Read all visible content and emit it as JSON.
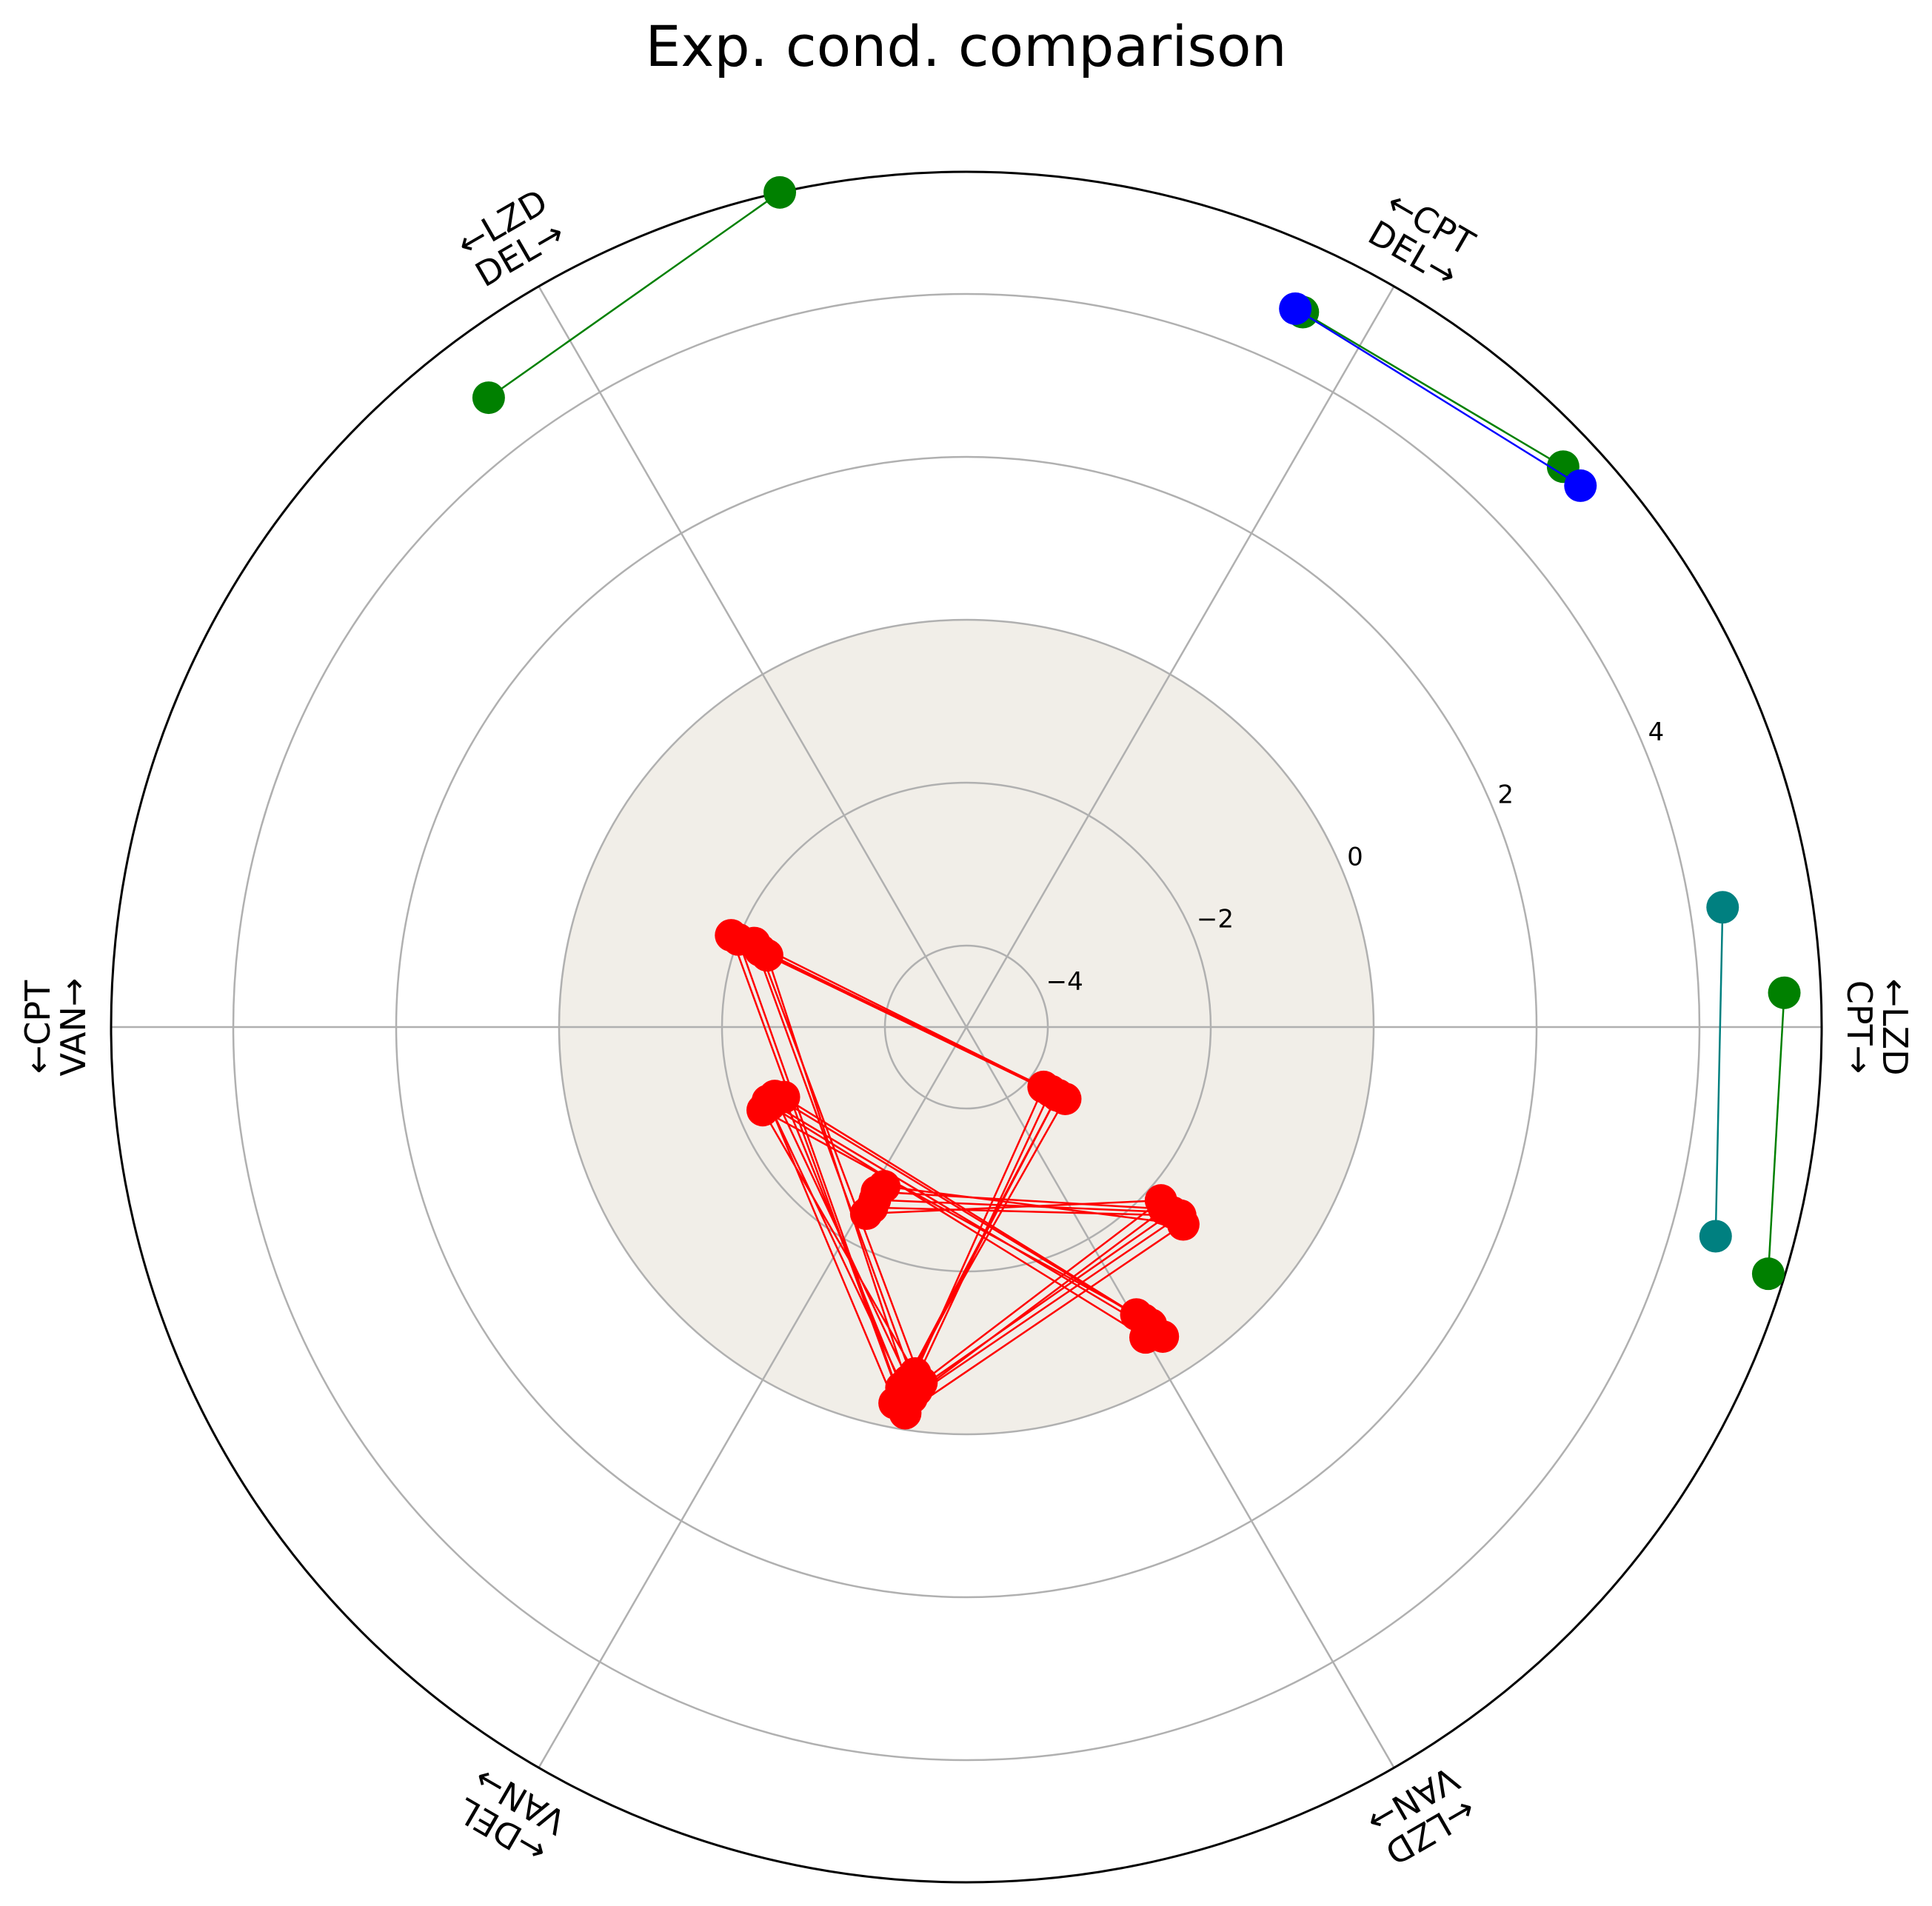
{
  "chart_data": {
    "type": "scatter",
    "subtype": "polar",
    "title": "Exp. cond. comparison",
    "r_ticks": [
      -4,
      -2,
      0,
      2,
      4
    ],
    "r_range": [
      -5,
      5.5
    ],
    "shaded_region_r_max": 0,
    "grid": true,
    "axis_labels": [
      {
        "angle_deg": 0,
        "outer": "←LZD",
        "inner": "CPT→"
      },
      {
        "angle_deg": 60,
        "outer": "←CPT",
        "inner": "DEL→"
      },
      {
        "angle_deg": 120,
        "outer": "←LZD",
        "inner": "DEL→"
      },
      {
        "angle_deg": 180,
        "outer": "←CPT",
        "inner": "VAN→"
      },
      {
        "angle_deg": 240,
        "outer": "←DEL",
        "inner": "VAN→"
      },
      {
        "angle_deg": 300,
        "outer": "←LZD",
        "inner": "VAN→"
      }
    ],
    "series": [
      {
        "color": "#008000",
        "paths": [
          [
            [
              -2.8,
              5.05
            ],
            [
              0.8,
              4.7
            ]
          ],
          [
            [
              -2.9,
              5.5
            ],
            [
              1.2,
              4.7
            ]
          ],
          [
            [
              -2.85,
              5.3
            ],
            [
              0.4,
              5.05
            ]
          ]
        ]
      },
      {
        "color": "#0000ff",
        "paths": [
          [
            [
              -3.1,
              5.05
            ],
            [
              0.9,
              4.7
            ]
          ]
        ]
      },
      {
        "color": "#008080",
        "paths": [
          [
            [
              -2.6,
              4.55
            ],
            [
              1.5,
              4.4
            ]
          ]
        ]
      },
      {
        "color": "#ff0000",
        "paths": [
          [
            [
              0,
              -0.6
            ],
            [
              3.6,
              -2.4
            ],
            [
              3.5,
              -0.4
            ],
            [
              3.8,
              -3.7
            ],
            [
              -3.6,
              -2.2
            ],
            [
              3.7,
              -0.5
            ],
            [
              3.0,
              -1.6
            ],
            [
              0.35,
              -2.6
            ]
          ],
          [
            [
              0.3,
              -0.7
            ],
            [
              3.3,
              -2.5
            ],
            [
              3.45,
              -0.6
            ],
            [
              3.9,
              -3.6
            ],
            [
              -3.5,
              -2.0
            ],
            [
              3.4,
              -0.3
            ],
            [
              3.1,
              -1.5
            ],
            [
              0.4,
              -2.5
            ]
          ],
          [
            [
              0.2,
              -0.8
            ],
            [
              3.5,
              -2.6
            ],
            [
              3.3,
              -0.5
            ],
            [
              4.0,
              -3.5
            ],
            [
              -3.3,
              -2.4
            ],
            [
              3.6,
              -0.4
            ],
            [
              2.9,
              -1.7
            ],
            [
              0.25,
              -2.7
            ]
          ],
          [
            [
              0.1,
              -0.9
            ],
            [
              3.7,
              -2.3
            ],
            [
              3.6,
              -0.7
            ],
            [
              3.7,
              -3.8
            ],
            [
              -3.4,
              -2.3
            ],
            [
              3.8,
              -0.6
            ],
            [
              3.05,
              -1.8
            ],
            [
              0.3,
              -2.4
            ]
          ],
          [
            [
              0.4,
              -0.5
            ],
            [
              3.4,
              -2.4
            ],
            [
              3.2,
              -0.3
            ],
            [
              3.85,
              -3.6
            ],
            [
              -3.55,
              -1.9
            ],
            [
              3.5,
              -0.2
            ],
            [
              2.95,
              -1.4
            ],
            [
              0.45,
              -2.8
            ]
          ]
        ]
      }
    ]
  }
}
